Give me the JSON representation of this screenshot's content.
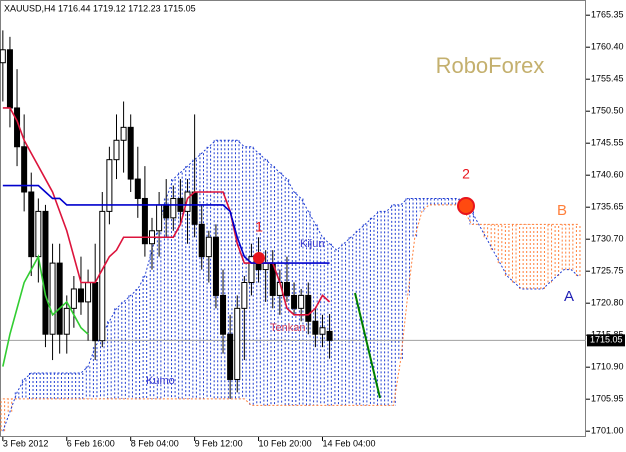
{
  "chart_data": {
    "type": "candlestick",
    "title": "XAUUSD,H4  1716.44 1719.12 1712.23 1715.05",
    "categories": [
      "3 Feb 2012",
      null,
      null,
      null,
      null,
      null,
      null,
      null,
      null,
      "6 Feb 16:00",
      null,
      null,
      null,
      null,
      null,
      null,
      null,
      null,
      "8 Feb 04:00",
      null,
      null,
      null,
      null,
      null,
      null,
      null,
      null,
      "9 Feb 12:00",
      null,
      null,
      null,
      null,
      null,
      null,
      null,
      null,
      "10 Feb 20:00",
      null,
      null,
      null,
      null,
      null,
      null,
      null,
      null,
      "14 Feb 04:00",
      null,
      null,
      null,
      null,
      null,
      null,
      null,
      null,
      null,
      null,
      null,
      null,
      null,
      null,
      null,
      null,
      null,
      null,
      null,
      null,
      null,
      null,
      null,
      null,
      null,
      null,
      null,
      null,
      null,
      null,
      null,
      null,
      null,
      null,
      null,
      null,
      null
    ],
    "open": [
      1758,
      1760,
      1751,
      1745,
      1738,
      1728,
      1735,
      1716,
      1727,
      1716,
      1720,
      1723,
      1721,
      1724,
      1715,
      1735,
      1743,
      1746,
      1748,
      1740,
      1737,
      1730,
      1732,
      1736,
      1734,
      1737,
      1735,
      1738,
      1733,
      1728,
      1731,
      1722,
      1716,
      1709,
      1720,
      1724,
      1728,
      1726,
      1727,
      1722,
      1724,
      1722,
      1720,
      1722,
      1718,
      1716,
      1716.44,
      null,
      null,
      null,
      null,
      null,
      null,
      null,
      null,
      null,
      null,
      null,
      null,
      null,
      null,
      null,
      null,
      null,
      null,
      null,
      null,
      null,
      null,
      null,
      null,
      null,
      null,
      null,
      null,
      null,
      null,
      null,
      null,
      null,
      null,
      null,
      null
    ],
    "high": [
      1763,
      1762,
      1757,
      1750,
      1741,
      1737,
      1736,
      1730,
      1730,
      1722,
      1725,
      1728,
      1726,
      1730,
      1738,
      1745,
      1750,
      1752,
      1750,
      1745,
      1742,
      1734,
      1738,
      1740,
      1739,
      1740,
      1740,
      1750,
      1736,
      1732,
      1733,
      1726,
      1719,
      1722,
      1725,
      1730,
      1731,
      1729,
      1729,
      1726,
      1728,
      1724,
      1723,
      1724,
      1720,
      1719,
      1719.12,
      null,
      null,
      null,
      null,
      null,
      null,
      null,
      null,
      null,
      null,
      null,
      null,
      null,
      null,
      null,
      null,
      null,
      null,
      null,
      null,
      null,
      null,
      null,
      null,
      null,
      null,
      null,
      null,
      null,
      null,
      null,
      null,
      null,
      null,
      null,
      null
    ],
    "low": [
      1752,
      1748,
      1742,
      1735,
      1725,
      1724,
      1714,
      1712,
      1713,
      1713,
      1717,
      1719,
      1715,
      1712,
      1714,
      1733,
      1740,
      1741,
      1738,
      1734,
      1728,
      1726,
      1728,
      1731,
      1732,
      1733,
      1730,
      1731,
      1726,
      1724,
      1720,
      1713,
      1706,
      1707,
      1712,
      1722,
      1724,
      1721,
      1720,
      1719,
      1721,
      1719,
      1718,
      1716,
      1714,
      1714,
      1712.23,
      null,
      null,
      null,
      null,
      null,
      null,
      null,
      null,
      null,
      null,
      null,
      null,
      null,
      null,
      null,
      null,
      null,
      null,
      null,
      null,
      null,
      null,
      null,
      null,
      null,
      null,
      null,
      null,
      null,
      null,
      null,
      null,
      null,
      null,
      null,
      null
    ],
    "close": [
      1760,
      1751,
      1745,
      1738,
      1728,
      1735,
      1716,
      1727,
      1716,
      1720,
      1723,
      1721,
      1724,
      1715,
      1735,
      1743,
      1746,
      1748,
      1740,
      1737,
      1730,
      1732,
      1736,
      1734,
      1737,
      1735,
      1738,
      1733,
      1728,
      1731,
      1722,
      1716,
      1709,
      1720,
      1724,
      1728,
      1726,
      1727,
      1722,
      1724,
      1722,
      1720,
      1722,
      1718,
      1716,
      1717,
      1715.05,
      null,
      null,
      null,
      null,
      null,
      null,
      null,
      null,
      null,
      null,
      null,
      null,
      null,
      null,
      null,
      null,
      null,
      null,
      null,
      null,
      null,
      null,
      null,
      null,
      null,
      null,
      null,
      null,
      null,
      null,
      null,
      null,
      null,
      null,
      null,
      null
    ],
    "color_up": "#ffffff",
    "color_down": "#000000",
    "series": [
      {
        "name": "Tenkan",
        "color": "#dc143c",
        "style": "solid",
        "values": [
          1751,
          1751,
          1749,
          1746,
          1744,
          1742,
          1740,
          1738,
          1735,
          1732,
          1728,
          1724,
          1724,
          1724,
          1726,
          1728,
          1729,
          1731,
          1731,
          1731,
          1731,
          1731,
          1731,
          1731,
          1731,
          1733,
          1737,
          1738,
          1738,
          1738,
          1738,
          1738,
          1735,
          1730,
          1727,
          1727,
          1727,
          1727,
          1727,
          1724,
          1720,
          1719,
          1719,
          1719,
          1720,
          1722,
          1721,
          null,
          null,
          null,
          null,
          null,
          null,
          null,
          null,
          null,
          null,
          null,
          null,
          null,
          null,
          null,
          null,
          null,
          null,
          null,
          null,
          null,
          null,
          null,
          null,
          null,
          null,
          null,
          null,
          null,
          null,
          null,
          null,
          null,
          null,
          null,
          null
        ]
      },
      {
        "name": "Kijun",
        "color": "#0000cd",
        "style": "solid",
        "values": [
          1739,
          1739,
          1739,
          1739,
          1739,
          1739,
          1738,
          1737,
          1737,
          1736,
          1736,
          1736,
          1736,
          1736,
          1736,
          1736,
          1736,
          1736,
          1736,
          1736,
          1736,
          1736,
          1736,
          1736,
          1736,
          1736,
          1736,
          1736,
          1736,
          1736,
          1736,
          1736,
          1735,
          1731,
          1728,
          1727,
          1727,
          1727,
          1727,
          1727,
          1727,
          1727,
          1727,
          1727,
          1727,
          1727,
          1727,
          null,
          null,
          null,
          null,
          null,
          null,
          null,
          null,
          null,
          null,
          null,
          null,
          null,
          null,
          null,
          null,
          null,
          null,
          null,
          null,
          null,
          null,
          null,
          null,
          null,
          null,
          null,
          null,
          null,
          null,
          null,
          null,
          null,
          null,
          null,
          null
        ]
      },
      {
        "color": "#32cd32",
        "style": "solid",
        "values": [
          1711,
          1716,
          1720,
          1724,
          1726,
          1728,
          1722,
          1719,
          1720,
          1721,
          1719,
          1717,
          1716,
          null,
          null,
          null,
          null,
          null,
          null,
          null,
          null,
          null,
          null,
          null,
          null,
          null,
          null,
          null,
          null,
          null,
          null,
          null,
          null,
          null,
          null,
          null,
          null,
          null,
          null,
          null,
          null,
          null,
          null,
          null,
          null,
          null,
          null,
          null,
          null,
          null,
          null,
          null,
          null,
          null,
          null,
          null,
          null,
          null,
          null,
          null,
          null,
          null,
          null,
          null,
          null,
          null,
          null,
          null,
          null,
          null,
          null,
          null,
          null,
          null,
          null,
          null,
          null,
          null,
          null,
          null,
          null,
          null,
          null
        ]
      },
      {
        "name": "A",
        "color": "#1e3cd2",
        "style": "dotted",
        "values": [
          1701,
          1704,
          1707,
          1709,
          1710,
          1710,
          1710,
          1710,
          1710,
          1710,
          1710,
          1710,
          1711,
          1714,
          1716,
          1718,
          1720,
          1721,
          1722,
          1723,
          1725,
          1729,
          1733,
          1737,
          1740,
          1741,
          1742,
          1743,
          1744,
          1745,
          1746,
          1746,
          1746,
          1746,
          1745,
          1745,
          1744,
          1743,
          1742,
          1741,
          1740,
          1738,
          1737,
          1735,
          1733,
          1731,
          1730,
          1729,
          1730,
          1731,
          1732,
          1733,
          1734,
          1735,
          1735,
          1736,
          1736,
          1737,
          1737,
          1737,
          1737,
          1737,
          1737,
          1737,
          1737,
          1736,
          1735,
          1733,
          1731,
          1729,
          1727,
          1725,
          1724,
          1723,
          1723,
          1723,
          1723,
          1724,
          1725,
          1726,
          1726,
          1725,
          null
        ]
      },
      {
        "name": "B",
        "color": "#ff7f3a",
        "style": "dotted",
        "values": [
          1706,
          1706,
          1706,
          1706,
          1706,
          1706,
          1706,
          1706,
          1706,
          1706,
          1706,
          1706,
          1706,
          1706,
          1706,
          1706,
          1706,
          1706,
          1706,
          1706,
          1706,
          1706,
          1706,
          1706,
          1706,
          1706,
          1706,
          1706,
          1706,
          1706,
          1706,
          1706,
          1706,
          1706,
          1706,
          1705,
          1705,
          1705,
          1705,
          1705,
          1705,
          1705,
          1705,
          1705,
          1705,
          1705,
          1705,
          1705,
          1705,
          1705,
          1705,
          1705,
          1705,
          1705,
          1705,
          1705,
          1712,
          1722,
          1731,
          1735,
          1736,
          1736,
          1736,
          1736,
          1736,
          1735,
          1733,
          1733,
          1733,
          1733,
          1733,
          1733,
          1733,
          1733,
          1733,
          1733,
          1733,
          1733,
          1733,
          1733,
          1733,
          1733,
          null
        ]
      }
    ],
    "current_price": 1715.05,
    "xlim": [
      -0.4,
      82.1
    ],
    "ylim": [
      1700.1,
      1767.7
    ],
    "yticks": [
      {
        "value": 1701,
        "label": "1701.00"
      },
      {
        "value": 1705.95,
        "label": "1705.95"
      },
      {
        "value": 1710.9,
        "label": "1710.90"
      },
      {
        "value": 1715.85,
        "label": "1715.85"
      },
      {
        "value": 1720.8,
        "label": "1720.80"
      },
      {
        "value": 1725.75,
        "label": "1725.75"
      },
      {
        "value": 1730.7,
        "label": "1730.70"
      },
      {
        "value": 1735.65,
        "label": "1735.65"
      },
      {
        "value": 1740.6,
        "label": "1740.60"
      },
      {
        "value": 1745.55,
        "label": "1745.55"
      },
      {
        "value": 1750.5,
        "label": "1750.50"
      },
      {
        "value": 1755.45,
        "label": "1755.45"
      },
      {
        "value": 1760.4,
        "label": "1760.40"
      },
      {
        "value": 1765.35,
        "label": "1765.35"
      }
    ],
    "grid": false,
    "annotations": {
      "watermark": "RoboForex",
      "point1": "1",
      "point2": "2",
      "cloud": "Kumo"
    }
  }
}
